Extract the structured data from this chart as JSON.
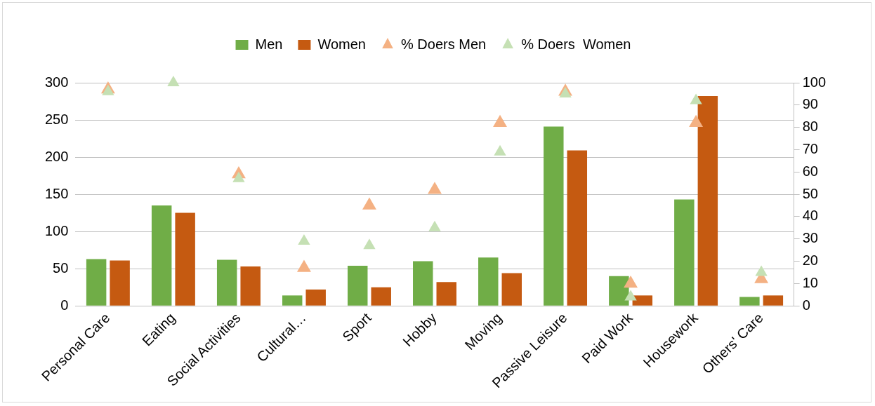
{
  "chart_data": {
    "type": "bar",
    "categories": [
      "Personal Care",
      "Eating",
      "Social Activities",
      "Cultural…",
      "Sport",
      "Hobby",
      "Moving",
      "Passive Leisure",
      "Paid Work",
      "Housework",
      "Others' Care"
    ],
    "series": [
      {
        "name": "Men",
        "color": "#70ad47",
        "values": [
          63,
          135,
          62,
          14,
          54,
          60,
          65,
          241,
          40,
          143,
          12
        ]
      },
      {
        "name": "Women",
        "color": "#c55a11",
        "values": [
          61,
          125,
          53,
          22,
          25,
          32,
          44,
          209,
          14,
          282,
          14
        ]
      },
      {
        "name": "% Doers Men",
        "type": "scatter",
        "axis": "y2",
        "color": "#f4b183",
        "values": [
          97,
          null,
          59,
          17,
          45,
          52,
          82,
          96,
          10,
          82,
          12
        ]
      },
      {
        "name": "% Doers  Women",
        "type": "scatter",
        "axis": "y2",
        "color": "#c5e0b4",
        "values": [
          96,
          100,
          57,
          29,
          27,
          35,
          69,
          95,
          4,
          92,
          15
        ]
      }
    ],
    "ylim": [
      0,
      300
    ],
    "yticks": [
      0,
      50,
      100,
      150,
      200,
      250,
      300
    ],
    "y2lim": [
      0,
      100
    ],
    "y2ticks": [
      0,
      10,
      20,
      30,
      40,
      50,
      60,
      70,
      80,
      90,
      100
    ],
    "grid": "y",
    "legend": "top",
    "marker": "triangle"
  }
}
